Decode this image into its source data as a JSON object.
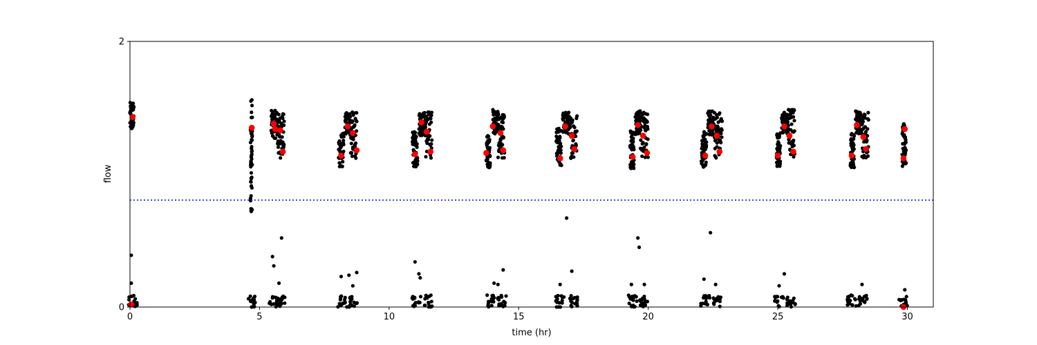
{
  "chart_data": {
    "type": "scatter",
    "title": "",
    "xlabel": "time (hr)",
    "ylabel": "flow",
    "xlim": [
      0,
      31
    ],
    "ylim": [
      0,
      2
    ],
    "xticks": [
      0,
      5,
      10,
      15,
      20,
      25,
      30
    ],
    "yticks": [
      0,
      2
    ],
    "xtick_labels": [
      "0",
      "5",
      "10",
      "15",
      "20",
      "25",
      "30"
    ],
    "ytick_labels": [
      "0",
      "2"
    ],
    "grid": false,
    "threshold": {
      "y": 0.805,
      "color": "#0000ff",
      "style": "dotted"
    },
    "series": [
      {
        "marker": "dot",
        "color": "#000000",
        "clusters": [
          {
            "t": [
              0.0,
              0.15
            ],
            "lo": 1.32,
            "hi": 1.54
          },
          {
            "t": [
              4.65,
              4.72
            ],
            "lo": 0.72,
            "hi": 1.6
          },
          {
            "t": [
              5.45,
              5.7
            ],
            "lo": 1.27,
            "hi": 1.48
          },
          {
            "t": [
              5.7,
              5.95
            ],
            "lo": 1.12,
            "hi": 1.46
          },
          {
            "t": [
              8.05,
              8.25
            ],
            "lo": 1.05,
            "hi": 1.31
          },
          {
            "t": [
              8.3,
              8.5
            ],
            "lo": 1.3,
            "hi": 1.47
          },
          {
            "t": [
              8.5,
              8.75
            ],
            "lo": 1.12,
            "hi": 1.47
          },
          {
            "t": [
              10.9,
              11.1
            ],
            "lo": 1.05,
            "hi": 1.32
          },
          {
            "t": [
              11.15,
              11.4
            ],
            "lo": 1.29,
            "hi": 1.47
          },
          {
            "t": [
              11.4,
              11.65
            ],
            "lo": 1.12,
            "hi": 1.48
          },
          {
            "t": [
              13.75,
              13.9
            ],
            "lo": 1.05,
            "hi": 1.3
          },
          {
            "t": [
              14.0,
              14.2
            ],
            "lo": 1.3,
            "hi": 1.49
          },
          {
            "t": [
              14.2,
              14.45
            ],
            "lo": 1.12,
            "hi": 1.45
          },
          {
            "t": [
              16.45,
              16.65
            ],
            "lo": 1.05,
            "hi": 1.35
          },
          {
            "t": [
              16.7,
              16.95
            ],
            "lo": 1.3,
            "hi": 1.47
          },
          {
            "t": [
              16.95,
              17.25
            ],
            "lo": 1.12,
            "hi": 1.46
          },
          {
            "t": [
              19.3,
              19.45
            ],
            "lo": 1.04,
            "hi": 1.35
          },
          {
            "t": [
              19.5,
              19.7
            ],
            "lo": 1.3,
            "hi": 1.48
          },
          {
            "t": [
              19.7,
              20.0
            ],
            "lo": 1.12,
            "hi": 1.48
          },
          {
            "t": [
              22.05,
              22.25
            ],
            "lo": 1.05,
            "hi": 1.32
          },
          {
            "t": [
              22.3,
              22.55
            ],
            "lo": 1.29,
            "hi": 1.48
          },
          {
            "t": [
              22.55,
              22.85
            ],
            "lo": 1.12,
            "hi": 1.48
          },
          {
            "t": [
              24.95,
              25.1
            ],
            "lo": 1.06,
            "hi": 1.32
          },
          {
            "t": [
              25.15,
              25.4
            ],
            "lo": 1.3,
            "hi": 1.47
          },
          {
            "t": [
              25.4,
              25.65
            ],
            "lo": 1.12,
            "hi": 1.5
          },
          {
            "t": [
              27.8,
              27.95
            ],
            "lo": 1.05,
            "hi": 1.32
          },
          {
            "t": [
              28.0,
              28.25
            ],
            "lo": 1.3,
            "hi": 1.48
          },
          {
            "t": [
              28.25,
              28.5
            ],
            "lo": 1.12,
            "hi": 1.47
          },
          {
            "t": [
              29.8,
              29.95
            ],
            "lo": 1.05,
            "hi": 1.38
          }
        ],
        "low_groups": [
          0.1,
          4.7,
          5.55,
          5.8,
          8.2,
          8.6,
          11.05,
          11.5,
          13.9,
          14.35,
          16.6,
          17.1,
          19.4,
          19.85,
          22.2,
          22.65,
          25.05,
          25.5,
          27.85,
          28.3,
          29.85
        ],
        "outliers": [
          {
            "x": 0.05,
            "y": 0.39
          },
          {
            "x": 0.05,
            "y": 0.18
          },
          {
            "x": 0.05,
            "y": 0.08
          },
          {
            "x": 4.68,
            "y": 1.13
          },
          {
            "x": 4.68,
            "y": 1.01
          },
          {
            "x": 4.68,
            "y": 0.91
          },
          {
            "x": 4.68,
            "y": 0.72
          },
          {
            "x": 5.5,
            "y": 0.38
          },
          {
            "x": 5.55,
            "y": 0.31
          },
          {
            "x": 5.85,
            "y": 0.52
          },
          {
            "x": 5.75,
            "y": 0.18
          },
          {
            "x": 8.15,
            "y": 0.23
          },
          {
            "x": 8.45,
            "y": 0.24
          },
          {
            "x": 8.6,
            "y": 0.16
          },
          {
            "x": 8.75,
            "y": 0.26
          },
          {
            "x": 11.0,
            "y": 0.34
          },
          {
            "x": 11.15,
            "y": 0.25
          },
          {
            "x": 11.2,
            "y": 0.22
          },
          {
            "x": 14.05,
            "y": 0.18
          },
          {
            "x": 14.2,
            "y": 0.17
          },
          {
            "x": 14.4,
            "y": 0.28
          },
          {
            "x": 16.6,
            "y": 0.17
          },
          {
            "x": 16.85,
            "y": 0.67
          },
          {
            "x": 17.05,
            "y": 0.27
          },
          {
            "x": 19.35,
            "y": 0.17
          },
          {
            "x": 19.6,
            "y": 0.52
          },
          {
            "x": 19.65,
            "y": 0.45
          },
          {
            "x": 19.85,
            "y": 0.17
          },
          {
            "x": 22.15,
            "y": 0.21
          },
          {
            "x": 22.4,
            "y": 0.56
          },
          {
            "x": 22.6,
            "y": 0.17
          },
          {
            "x": 25.05,
            "y": 0.16
          },
          {
            "x": 25.25,
            "y": 0.25
          },
          {
            "x": 28.25,
            "y": 0.17
          },
          {
            "x": 29.9,
            "y": 0.13
          }
        ]
      },
      {
        "marker": "large-dot",
        "color": "#ff0000",
        "points": [
          {
            "x": 0.1,
            "y": 1.43
          },
          {
            "x": 0.05,
            "y": 0.02
          },
          {
            "x": 4.7,
            "y": 1.35
          },
          {
            "x": 5.55,
            "y": 1.38
          },
          {
            "x": 5.6,
            "y": 1.34
          },
          {
            "x": 5.8,
            "y": 1.33
          },
          {
            "x": 5.9,
            "y": 1.17
          },
          {
            "x": 8.15,
            "y": 1.14
          },
          {
            "x": 8.4,
            "y": 1.36
          },
          {
            "x": 8.6,
            "y": 1.31
          },
          {
            "x": 8.75,
            "y": 1.18
          },
          {
            "x": 11.0,
            "y": 1.15
          },
          {
            "x": 11.25,
            "y": 1.39
          },
          {
            "x": 11.45,
            "y": 1.32
          },
          {
            "x": 11.6,
            "y": 1.17
          },
          {
            "x": 13.75,
            "y": 1.16
          },
          {
            "x": 14.0,
            "y": 1.36
          },
          {
            "x": 14.3,
            "y": 1.31
          },
          {
            "x": 14.4,
            "y": 1.18
          },
          {
            "x": 16.6,
            "y": 1.12
          },
          {
            "x": 16.8,
            "y": 1.36
          },
          {
            "x": 17.05,
            "y": 1.29
          },
          {
            "x": 17.15,
            "y": 1.19
          },
          {
            "x": 19.4,
            "y": 1.13
          },
          {
            "x": 19.6,
            "y": 1.37
          },
          {
            "x": 19.8,
            "y": 1.29
          },
          {
            "x": 19.95,
            "y": 1.16
          },
          {
            "x": 22.2,
            "y": 1.14
          },
          {
            "x": 22.45,
            "y": 1.36
          },
          {
            "x": 22.65,
            "y": 1.29
          },
          {
            "x": 22.75,
            "y": 1.17
          },
          {
            "x": 25.0,
            "y": 1.14
          },
          {
            "x": 25.25,
            "y": 1.36
          },
          {
            "x": 25.45,
            "y": 1.29
          },
          {
            "x": 25.6,
            "y": 1.17
          },
          {
            "x": 27.85,
            "y": 1.14
          },
          {
            "x": 28.05,
            "y": 1.37
          },
          {
            "x": 28.3,
            "y": 1.28
          },
          {
            "x": 28.4,
            "y": 1.19
          },
          {
            "x": 29.85,
            "y": 1.12
          },
          {
            "x": 29.9,
            "y": 1.34
          },
          {
            "x": 29.85,
            "y": 0.0
          }
        ]
      }
    ]
  }
}
